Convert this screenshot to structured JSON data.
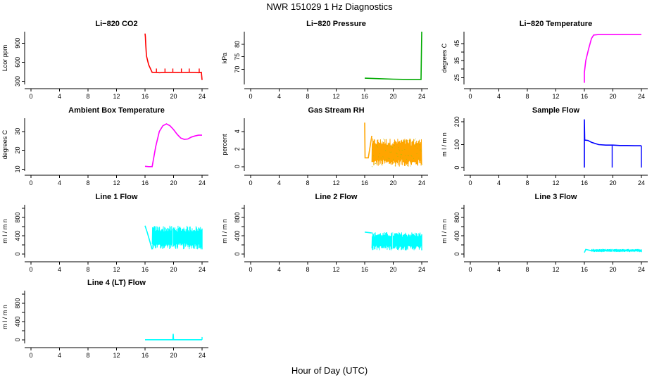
{
  "page": {
    "title": "NWR  151029  1 Hz Diagnostics",
    "xlabel": "Hour of Day (UTC)"
  },
  "chart_data": [
    {
      "id": "co2",
      "type": "line",
      "title": "Li−820 CO2",
      "ylabel": "Lcor ppm",
      "color": "#ff0000",
      "xlim": [
        0,
        24
      ],
      "xticks": [
        0,
        4,
        8,
        12,
        16,
        20,
        24
      ],
      "ylim": [
        250,
        1080
      ],
      "yticks": [
        300,
        600,
        900
      ],
      "ytick_labels": [
        "300",
        "600",
        "900"
      ],
      "x": [
        16.0,
        16.05,
        16.1,
        16.2,
        16.5,
        17.0,
        17.5,
        18,
        19,
        20,
        21,
        22,
        23,
        23.5,
        23.9,
        24.0
      ],
      "y": [
        1050,
        1000,
        880,
        700,
        560,
        440,
        440,
        435,
        440,
        440,
        438,
        440,
        440,
        435,
        440,
        320
      ],
      "annotations": "short upward spikes to ~500 ppm at ~17.6, 18.8, 19.9, 21.1, 22.2 and 23.6 h"
    },
    {
      "id": "pressure",
      "type": "line",
      "title": "Li−820 Pressure",
      "ylabel": "kPa",
      "color": "#00aa00",
      "xlim": [
        0,
        24
      ],
      "xticks": [
        0,
        4,
        8,
        12,
        16,
        20,
        24
      ],
      "ylim": [
        64,
        85
      ],
      "yticks": [
        70,
        75,
        80
      ],
      "ytick_labels": [
        "70",
        "75",
        "80"
      ],
      "x": [
        16,
        18,
        20,
        22,
        23.9,
        24.0
      ],
      "y": [
        66.5,
        66.3,
        66.1,
        66.0,
        66.0,
        85
      ]
    },
    {
      "id": "temperature",
      "type": "line",
      "title": "Li−820 Temperature",
      "ylabel": "degrees C",
      "color": "#ff00ff",
      "xlim": [
        0,
        24
      ],
      "xticks": [
        0,
        4,
        8,
        12,
        16,
        20,
        24
      ],
      "ylim": [
        21,
        52
      ],
      "yticks": [
        25,
        30,
        35,
        40,
        45
      ],
      "ytick_labels": [
        "25",
        "",
        "35",
        "",
        "45"
      ],
      "x": [
        16.0,
        16.0,
        16.2,
        16.6,
        17.0,
        17.3,
        18,
        20,
        22,
        24
      ],
      "y": [
        22,
        28,
        35,
        42,
        48,
        50,
        50.3,
        50.3,
        50.4,
        50.4
      ]
    },
    {
      "id": "ambient",
      "type": "line",
      "title": "Ambient Box Temperature",
      "ylabel": "degrees C",
      "color": "#ff00ff",
      "xlim": [
        0,
        24
      ],
      "xticks": [
        0,
        4,
        8,
        12,
        16,
        20,
        24
      ],
      "ylim": [
        9,
        37
      ],
      "yticks": [
        10,
        20,
        30
      ],
      "ytick_labels": [
        "10",
        "20",
        "30"
      ],
      "x": [
        16,
        16.5,
        17.0,
        17.5,
        18.0,
        18.5,
        19.0,
        19.5,
        20.0,
        20.5,
        21.0,
        21.5,
        22.0,
        22.5,
        23.0,
        23.5,
        24.0
      ],
      "y": [
        11.5,
        11.3,
        11.3,
        22,
        30,
        33,
        34,
        33,
        31,
        28.5,
        26.5,
        25.8,
        26,
        27,
        27.6,
        28,
        28
      ]
    },
    {
      "id": "rh",
      "type": "line",
      "title": "Gas Stream RH",
      "ylabel": "percent",
      "color": "#ffa500",
      "secondary_color": "#bbbb00",
      "xlim": [
        0,
        24
      ],
      "xticks": [
        0,
        4,
        8,
        12,
        16,
        20,
        24
      ],
      "ylim": [
        -0.5,
        5.5
      ],
      "yticks": [
        0,
        2,
        4
      ],
      "ytick_labels": [
        "0",
        "2",
        "4"
      ],
      "x": [
        16.0,
        16.05,
        16.5,
        17.0
      ],
      "y": [
        5.0,
        1.0,
        1.0,
        3.5
      ],
      "noise_band": {
        "x_start": 17.0,
        "x_end": 24.0,
        "low": 0.0,
        "high": 3.2
      }
    },
    {
      "id": "sample",
      "type": "line",
      "title": "Sample Flow",
      "ylabel": "m l / m n",
      "color": "#0000ff",
      "xlim": [
        0,
        24
      ],
      "xticks": [
        0,
        4,
        8,
        12,
        16,
        20,
        24
      ],
      "ylim": [
        -15,
        215
      ],
      "yticks": [
        0,
        100,
        200
      ],
      "ytick_labels": [
        "0",
        "100",
        "200"
      ],
      "x": [
        16.0,
        16.0,
        16.05,
        16.5,
        17.0,
        17.5,
        18,
        19,
        20,
        21,
        22,
        23,
        24
      ],
      "y": [
        0,
        210,
        120,
        118,
        110,
        105,
        100,
        98,
        98,
        96,
        96,
        95,
        95
      ],
      "spikes_down": [
        {
          "x": 19.9,
          "y": 0
        },
        {
          "x": 24.0,
          "y": 0
        }
      ]
    },
    {
      "id": "line1",
      "type": "line",
      "title": "Line 1 Flow",
      "ylabel": "m l / m n",
      "color": "#00ffff",
      "xlim": [
        0,
        24
      ],
      "xticks": [
        0,
        4,
        8,
        12,
        16,
        20,
        24
      ],
      "ylim": [
        -80,
        1080
      ],
      "yticks": [
        0,
        200,
        400,
        600,
        800,
        1000
      ],
      "ytick_labels": [
        "0",
        "",
        "400",
        "",
        "800",
        ""
      ],
      "x": [
        16.0,
        16.3,
        17.0
      ],
      "y": [
        620,
        480,
        100
      ],
      "noise_band": {
        "x_start": 17.0,
        "x_end": 24.0,
        "low": 100,
        "high": 620
      }
    },
    {
      "id": "line2",
      "type": "line",
      "title": "Line 2 Flow",
      "ylabel": "m l / m n",
      "color": "#00ffff",
      "xlim": [
        0,
        24
      ],
      "xticks": [
        0,
        4,
        8,
        12,
        16,
        20,
        24
      ],
      "ylim": [
        -80,
        1080
      ],
      "yticks": [
        0,
        200,
        400,
        600,
        800,
        1000
      ],
      "ytick_labels": [
        "0",
        "",
        "400",
        "",
        "800",
        ""
      ],
      "x": [
        16.0,
        16.5,
        17.0
      ],
      "y": [
        480,
        470,
        460
      ],
      "noise_band": {
        "x_start": 17.0,
        "x_end": 24.0,
        "low": 80,
        "high": 480
      }
    },
    {
      "id": "line3",
      "type": "line",
      "title": "Line 3 Flow",
      "ylabel": "m l / m n",
      "color": "#00ffff",
      "xlim": [
        0,
        24
      ],
      "xticks": [
        0,
        4,
        8,
        12,
        16,
        20,
        24
      ],
      "ylim": [
        -80,
        1080
      ],
      "yticks": [
        0,
        200,
        400,
        600,
        800,
        1000
      ],
      "ytick_labels": [
        "0",
        "",
        "400",
        "",
        "800",
        ""
      ],
      "x": [
        16.0,
        16.2,
        17.0
      ],
      "y": [
        30,
        100,
        70
      ],
      "noise_band": {
        "x_start": 17.0,
        "x_end": 24.0,
        "low": 40,
        "high": 110
      }
    },
    {
      "id": "line4",
      "type": "line",
      "title": "Line 4 (LT) Flow",
      "ylabel": "m l / m n",
      "color": "#00ffff",
      "xlim": [
        0,
        24
      ],
      "xticks": [
        0,
        4,
        8,
        12,
        16,
        20,
        24
      ],
      "ylim": [
        -80,
        1080
      ],
      "yticks": [
        0,
        200,
        400,
        600,
        800,
        1000
      ],
      "ytick_labels": [
        "0",
        "",
        "400",
        "",
        "800",
        ""
      ],
      "x": [
        16.0,
        19.9,
        19.95,
        20.0,
        20.05,
        24.0
      ],
      "y": [
        0,
        0,
        130,
        0,
        0,
        0
      ],
      "spikes_up": [
        {
          "x": 24.0,
          "y": 60
        }
      ]
    }
  ]
}
